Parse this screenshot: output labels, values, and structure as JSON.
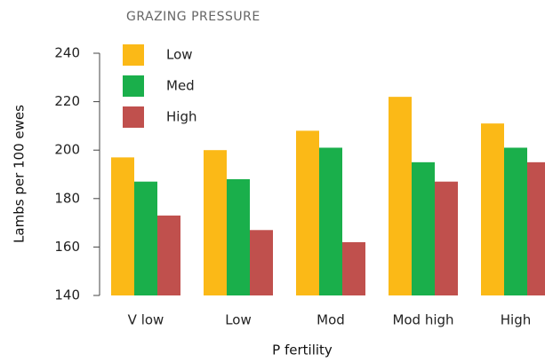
{
  "chart_data": {
    "type": "bar",
    "legend_title": "GRAZING PRESSURE",
    "x_label": "P fertility",
    "y_label": "Lambs per 100 ewes",
    "categories": [
      "V low",
      "Low",
      "Mod",
      "Mod high",
      "High"
    ],
    "series": [
      {
        "name": "Low",
        "color": "#fbb917",
        "values": [
          197,
          200,
          208,
          222,
          211
        ]
      },
      {
        "name": "Med",
        "color": "#1aaf4b",
        "values": [
          187,
          188,
          201,
          195,
          201
        ]
      },
      {
        "name": "High",
        "color": "#c0504d",
        "values": [
          173,
          167,
          162,
          187,
          195
        ]
      }
    ],
    "ylim": [
      140,
      240
    ],
    "yticks": [
      140,
      160,
      180,
      200,
      220,
      240
    ],
    "grid": false,
    "legend": "upper left"
  }
}
